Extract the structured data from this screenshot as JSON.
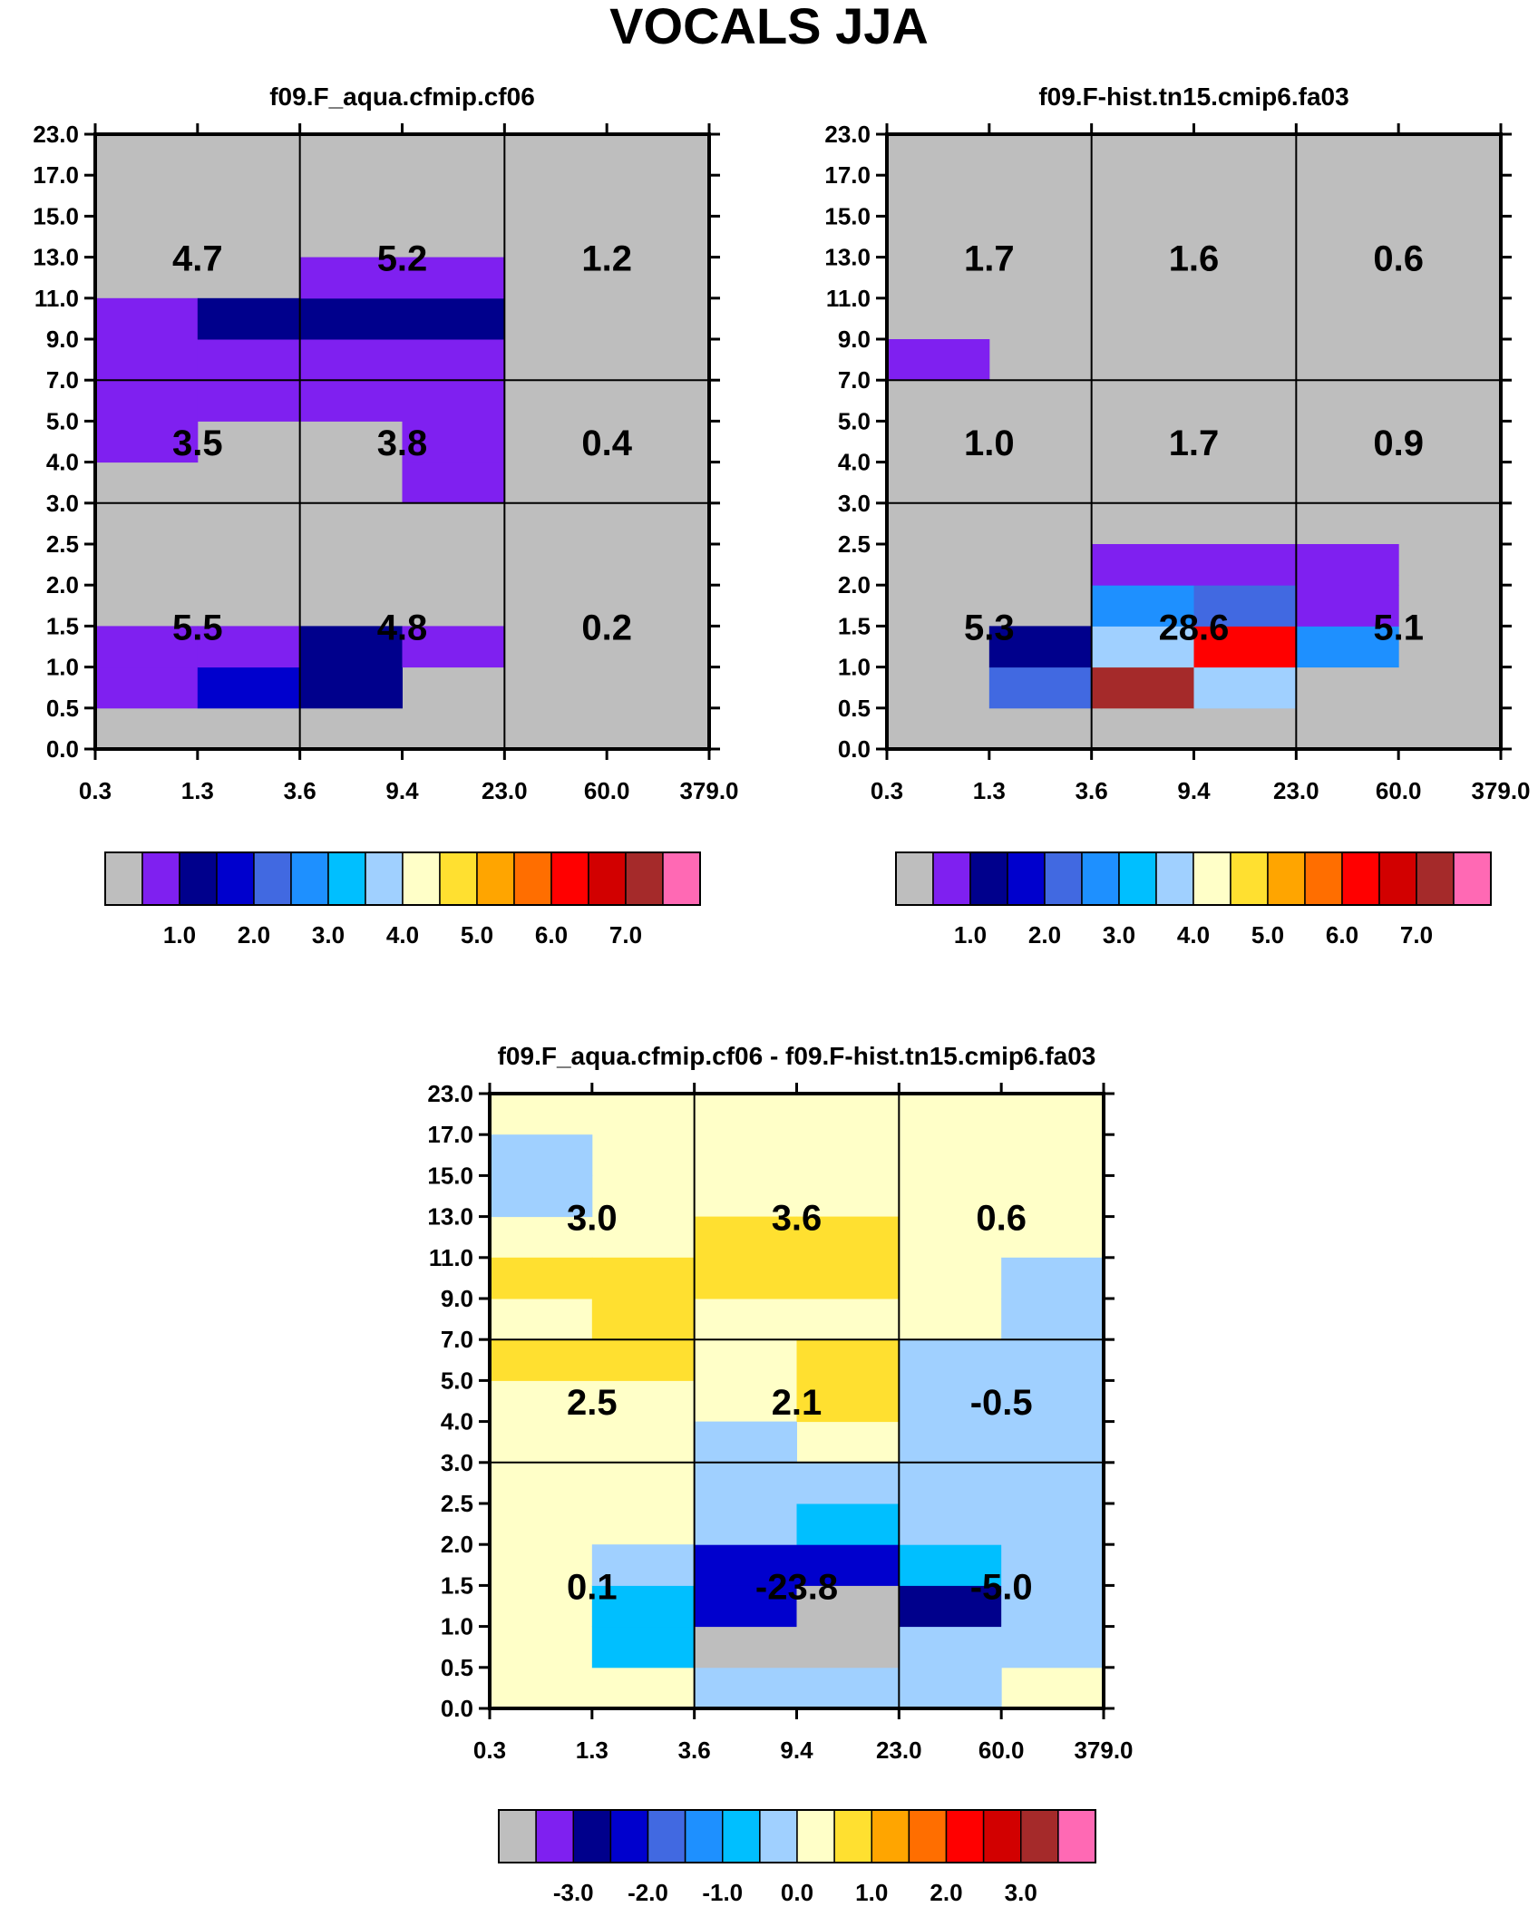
{
  "title": "VOCALS JJA",
  "palette": {
    "gray": "#bebebe",
    "violet": "#7f20f0",
    "navy": "#00008c",
    "blue": "#0000cd",
    "royal": "#4169e1",
    "dodger": "#1e90ff",
    "sky": "#00bfff",
    "pale_blue": "#a0d0ff",
    "pale_yellow": "#ffffc8",
    "yellow": "#ffe030",
    "orange": "#ffa500",
    "dark_orange": "#ff6e00",
    "red": "#ff0000",
    "crimson": "#d20000",
    "brown": "#a52a2a",
    "pink": "#ff69b4",
    "grid_line": "#000000"
  },
  "chart_data": [
    {
      "type": "heatmap",
      "panel": "top-left",
      "title": "f09.F_aqua.cfmip.cf06",
      "x_ticks": [
        "0.3",
        "1.3",
        "3.6",
        "9.4",
        "23.0",
        "60.0",
        "379.0"
      ],
      "y_ticks": [
        "0.0",
        "0.5",
        "1.0",
        "1.5",
        "2.0",
        "2.5",
        "3.0",
        "4.0",
        "5.0",
        "7.0",
        "9.0",
        "11.0",
        "13.0",
        "15.0",
        "17.0",
        "23.0"
      ],
      "grid": true,
      "background": "gray",
      "cells": [
        {
          "x": 0,
          "y": 1,
          "color": "violet"
        },
        {
          "x": 0,
          "y": 2,
          "color": "violet"
        },
        {
          "x": 1,
          "y": 1,
          "color": "blue"
        },
        {
          "x": 1,
          "y": 2,
          "color": "violet"
        },
        {
          "x": 2,
          "y": 1,
          "color": "navy"
        },
        {
          "x": 2,
          "y": 2,
          "color": "navy"
        },
        {
          "x": 3,
          "y": 2,
          "color": "violet"
        },
        {
          "x": 0,
          "y": 7,
          "color": "violet"
        },
        {
          "x": 0,
          "y": 8,
          "color": "violet"
        },
        {
          "x": 0,
          "y": 9,
          "color": "violet"
        },
        {
          "x": 0,
          "y": 10,
          "color": "violet"
        },
        {
          "x": 1,
          "y": 8,
          "color": "violet"
        },
        {
          "x": 1,
          "y": 9,
          "color": "violet"
        },
        {
          "x": 1,
          "y": 10,
          "color": "navy"
        },
        {
          "x": 2,
          "y": 8,
          "color": "violet"
        },
        {
          "x": 2,
          "y": 9,
          "color": "violet"
        },
        {
          "x": 2,
          "y": 10,
          "color": "navy"
        },
        {
          "x": 2,
          "y": 11,
          "color": "violet"
        },
        {
          "x": 3,
          "y": 6,
          "color": "violet"
        },
        {
          "x": 3,
          "y": 7,
          "color": "violet"
        },
        {
          "x": 3,
          "y": 8,
          "color": "violet"
        },
        {
          "x": 3,
          "y": 9,
          "color": "violet"
        },
        {
          "x": 3,
          "y": 10,
          "color": "navy"
        },
        {
          "x": 3,
          "y": 11,
          "color": "violet"
        }
      ],
      "annotations": [
        {
          "label": "4.7",
          "col": 0,
          "row": 2
        },
        {
          "label": "5.2",
          "col": 1,
          "row": 2
        },
        {
          "label": "1.2",
          "col": 2,
          "row": 2
        },
        {
          "label": "3.5",
          "col": 0,
          "row": 1
        },
        {
          "label": "3.8",
          "col": 1,
          "row": 1
        },
        {
          "label": "0.4",
          "col": 2,
          "row": 1
        },
        {
          "label": "5.5",
          "col": 0,
          "row": 0
        },
        {
          "label": "4.8",
          "col": 1,
          "row": 0
        },
        {
          "label": "0.2",
          "col": 2,
          "row": 0
        }
      ],
      "colorbar": {
        "colors": [
          "gray",
          "violet",
          "navy",
          "blue",
          "royal",
          "dodger",
          "sky",
          "pale_blue",
          "pale_yellow",
          "yellow",
          "orange",
          "dark_orange",
          "red",
          "crimson",
          "brown",
          "pink"
        ],
        "labels": [
          "1.0",
          "2.0",
          "3.0",
          "4.0",
          "5.0",
          "6.0",
          "7.0"
        ]
      }
    },
    {
      "type": "heatmap",
      "panel": "top-right",
      "title": "f09.F-hist.tn15.cmip6.fa03",
      "x_ticks": [
        "0.3",
        "1.3",
        "3.6",
        "9.4",
        "23.0",
        "60.0",
        "379.0"
      ],
      "y_ticks": [
        "0.0",
        "0.5",
        "1.0",
        "1.5",
        "2.0",
        "2.5",
        "3.0",
        "4.0",
        "5.0",
        "7.0",
        "9.0",
        "11.0",
        "13.0",
        "15.0",
        "17.0",
        "23.0"
      ],
      "grid": true,
      "background": "gray",
      "cells": [
        {
          "x": 0,
          "y": 9,
          "color": "violet"
        },
        {
          "x": 1,
          "y": 1,
          "color": "royal"
        },
        {
          "x": 1,
          "y": 2,
          "color": "navy"
        },
        {
          "x": 2,
          "y": 1,
          "color": "brown"
        },
        {
          "x": 2,
          "y": 2,
          "color": "pale_blue"
        },
        {
          "x": 2,
          "y": 3,
          "color": "dodger"
        },
        {
          "x": 2,
          "y": 4,
          "color": "violet"
        },
        {
          "x": 3,
          "y": 1,
          "color": "pale_blue"
        },
        {
          "x": 3,
          "y": 2,
          "color": "red"
        },
        {
          "x": 3,
          "y": 3,
          "color": "royal"
        },
        {
          "x": 3,
          "y": 4,
          "color": "violet"
        },
        {
          "x": 4,
          "y": 2,
          "color": "dodger"
        },
        {
          "x": 4,
          "y": 3,
          "color": "violet"
        },
        {
          "x": 4,
          "y": 4,
          "color": "violet"
        }
      ],
      "annotations": [
        {
          "label": "1.7",
          "col": 0,
          "row": 2
        },
        {
          "label": "1.6",
          "col": 1,
          "row": 2
        },
        {
          "label": "0.6",
          "col": 2,
          "row": 2
        },
        {
          "label": "1.0",
          "col": 0,
          "row": 1
        },
        {
          "label": "1.7",
          "col": 1,
          "row": 1
        },
        {
          "label": "0.9",
          "col": 2,
          "row": 1
        },
        {
          "label": "5.3",
          "col": 0,
          "row": 0
        },
        {
          "label": "28.6",
          "col": 1,
          "row": 0
        },
        {
          "label": "5.1",
          "col": 2,
          "row": 0
        }
      ],
      "colorbar": {
        "colors": [
          "gray",
          "violet",
          "navy",
          "blue",
          "royal",
          "dodger",
          "sky",
          "pale_blue",
          "pale_yellow",
          "yellow",
          "orange",
          "dark_orange",
          "red",
          "crimson",
          "brown",
          "pink"
        ],
        "labels": [
          "1.0",
          "2.0",
          "3.0",
          "4.0",
          "5.0",
          "6.0",
          "7.0"
        ]
      }
    },
    {
      "type": "heatmap",
      "panel": "bottom",
      "title": "f09.F_aqua.cfmip.cf06 - f09.F-hist.tn15.cmip6.fa03",
      "x_ticks": [
        "0.3",
        "1.3",
        "3.6",
        "9.4",
        "23.0",
        "60.0",
        "379.0"
      ],
      "y_ticks": [
        "0.0",
        "0.5",
        "1.0",
        "1.5",
        "2.0",
        "2.5",
        "3.0",
        "4.0",
        "5.0",
        "7.0",
        "9.0",
        "11.0",
        "13.0",
        "15.0",
        "17.0",
        "23.0"
      ],
      "grid": true,
      "background": "pale_yellow",
      "cells": [
        {
          "x": 1,
          "y": 1,
          "color": "sky"
        },
        {
          "x": 1,
          "y": 2,
          "color": "sky"
        },
        {
          "x": 1,
          "y": 3,
          "color": "pale_blue"
        },
        {
          "x": 2,
          "y": 0,
          "color": "pale_blue"
        },
        {
          "x": 2,
          "y": 1,
          "color": "gray"
        },
        {
          "x": 2,
          "y": 2,
          "color": "blue"
        },
        {
          "x": 2,
          "y": 3,
          "color": "blue"
        },
        {
          "x": 2,
          "y": 4,
          "color": "pale_blue"
        },
        {
          "x": 2,
          "y": 5,
          "color": "pale_blue"
        },
        {
          "x": 3,
          "y": 0,
          "color": "pale_blue"
        },
        {
          "x": 3,
          "y": 1,
          "color": "gray"
        },
        {
          "x": 3,
          "y": 2,
          "color": "gray"
        },
        {
          "x": 3,
          "y": 3,
          "color": "blue"
        },
        {
          "x": 3,
          "y": 4,
          "color": "sky"
        },
        {
          "x": 3,
          "y": 5,
          "color": "pale_blue"
        },
        {
          "x": 4,
          "y": 0,
          "color": "pale_blue"
        },
        {
          "x": 4,
          "y": 1,
          "color": "pale_blue"
        },
        {
          "x": 4,
          "y": 2,
          "color": "navy"
        },
        {
          "x": 4,
          "y": 3,
          "color": "sky"
        },
        {
          "x": 4,
          "y": 4,
          "color": "pale_blue"
        },
        {
          "x": 4,
          "y": 5,
          "color": "pale_blue"
        },
        {
          "x": 5,
          "y": 1,
          "color": "pale_blue"
        },
        {
          "x": 5,
          "y": 2,
          "color": "pale_blue"
        },
        {
          "x": 5,
          "y": 3,
          "color": "pale_blue"
        },
        {
          "x": 5,
          "y": 4,
          "color": "pale_blue"
        },
        {
          "x": 5,
          "y": 5,
          "color": "pale_blue"
        },
        {
          "x": 0,
          "y": 8,
          "color": "yellow"
        },
        {
          "x": 0,
          "y": 10,
          "color": "yellow"
        },
        {
          "x": 1,
          "y": 8,
          "color": "yellow"
        },
        {
          "x": 1,
          "y": 9,
          "color": "yellow"
        },
        {
          "x": 1,
          "y": 10,
          "color": "yellow"
        },
        {
          "x": 2,
          "y": 6,
          "color": "pale_blue"
        },
        {
          "x": 2,
          "y": 10,
          "color": "yellow"
        },
        {
          "x": 2,
          "y": 11,
          "color": "yellow"
        },
        {
          "x": 3,
          "y": 7,
          "color": "yellow"
        },
        {
          "x": 3,
          "y": 8,
          "color": "yellow"
        },
        {
          "x": 3,
          "y": 10,
          "color": "yellow"
        },
        {
          "x": 3,
          "y": 11,
          "color": "yellow"
        },
        {
          "x": 4,
          "y": 6,
          "color": "pale_blue"
        },
        {
          "x": 4,
          "y": 7,
          "color": "pale_blue"
        },
        {
          "x": 4,
          "y": 8,
          "color": "pale_blue"
        },
        {
          "x": 5,
          "y": 6,
          "color": "pale_blue"
        },
        {
          "x": 5,
          "y": 7,
          "color": "pale_blue"
        },
        {
          "x": 5,
          "y": 8,
          "color": "pale_blue"
        },
        {
          "x": 5,
          "y": 9,
          "color": "pale_blue"
        },
        {
          "x": 5,
          "y": 10,
          "color": "pale_blue"
        },
        {
          "x": 0,
          "y": 12,
          "color": "pale_blue"
        },
        {
          "x": 0,
          "y": 13,
          "color": "pale_blue"
        }
      ],
      "annotations": [
        {
          "label": "3.0",
          "col": 0,
          "row": 2
        },
        {
          "label": "3.6",
          "col": 1,
          "row": 2
        },
        {
          "label": "0.6",
          "col": 2,
          "row": 2
        },
        {
          "label": "2.5",
          "col": 0,
          "row": 1
        },
        {
          "label": "2.1",
          "col": 1,
          "row": 1
        },
        {
          "label": "-0.5",
          "col": 2,
          "row": 1
        },
        {
          "label": "0.1",
          "col": 0,
          "row": 0
        },
        {
          "label": "-23.8",
          "col": 1,
          "row": 0
        },
        {
          "label": "-5.0",
          "col": 2,
          "row": 0
        }
      ],
      "colorbar": {
        "colors": [
          "gray",
          "violet",
          "navy",
          "blue",
          "royal",
          "dodger",
          "sky",
          "pale_blue",
          "pale_yellow",
          "yellow",
          "orange",
          "dark_orange",
          "red",
          "crimson",
          "brown",
          "pink"
        ],
        "labels": [
          "-3.0",
          "-2.0",
          "-1.0",
          "0.0",
          "1.0",
          "2.0",
          "3.0"
        ]
      }
    }
  ]
}
